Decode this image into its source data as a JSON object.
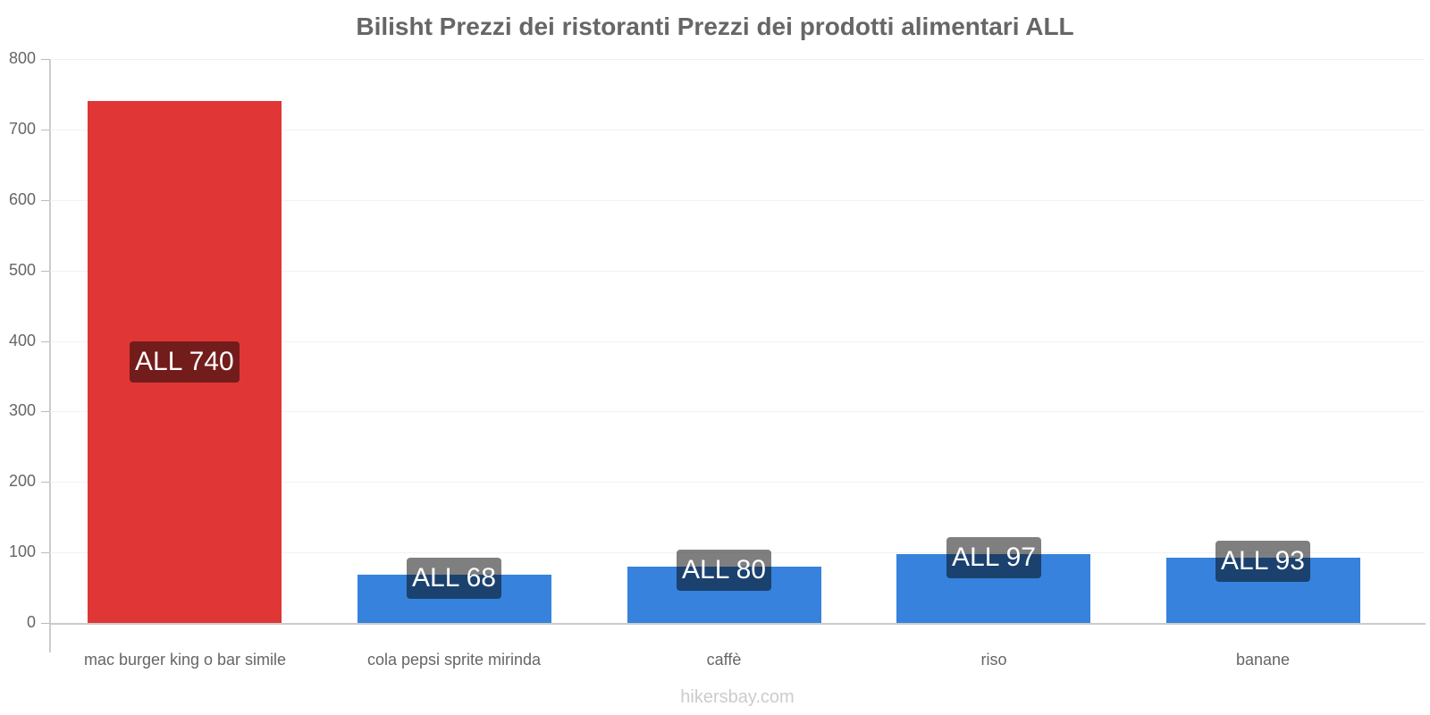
{
  "title": "Bilisht Prezzi dei ristoranti Prezzi dei prodotti alimentari ALL",
  "footer": "hikersbay.com",
  "colors": {
    "highlight_bar": "#e03636",
    "highlight_label_bg": "#731c1c",
    "normal_bar": "#3682dc",
    "normal_label_bg": "rgba(0,0,0,0.5)"
  },
  "y_ticks": [
    "0",
    "100",
    "200",
    "300",
    "400",
    "500",
    "600",
    "700",
    "800"
  ],
  "bars": [
    {
      "category": "mac burger king o bar simile",
      "value": 740,
      "label": "ALL 740",
      "highlight": true
    },
    {
      "category": "cola pepsi sprite mirinda",
      "value": 68,
      "label": "ALL 68",
      "highlight": false
    },
    {
      "category": "caffè",
      "value": 80,
      "label": "ALL 80",
      "highlight": false
    },
    {
      "category": "riso",
      "value": 97,
      "label": "ALL 97",
      "highlight": false
    },
    {
      "category": "banane",
      "value": 93,
      "label": "ALL 93",
      "highlight": false
    }
  ],
  "chart_data": {
    "type": "bar",
    "title": "Bilisht Prezzi dei ristoranti Prezzi dei prodotti alimentari ALL",
    "categories": [
      "mac burger king o bar simile",
      "cola pepsi sprite mirinda",
      "caffè",
      "riso",
      "banane"
    ],
    "values": [
      740,
      68,
      80,
      97,
      93
    ],
    "data_labels": [
      "ALL 740",
      "ALL 68",
      "ALL 80",
      "ALL 97",
      "ALL 93"
    ],
    "xlabel": "",
    "ylabel": "",
    "ylim": [
      0,
      800
    ],
    "yticks": [
      0,
      100,
      200,
      300,
      400,
      500,
      600,
      700,
      800
    ],
    "grid": true,
    "legend": "none",
    "annotations": [
      "hikersbay.com"
    ]
  }
}
